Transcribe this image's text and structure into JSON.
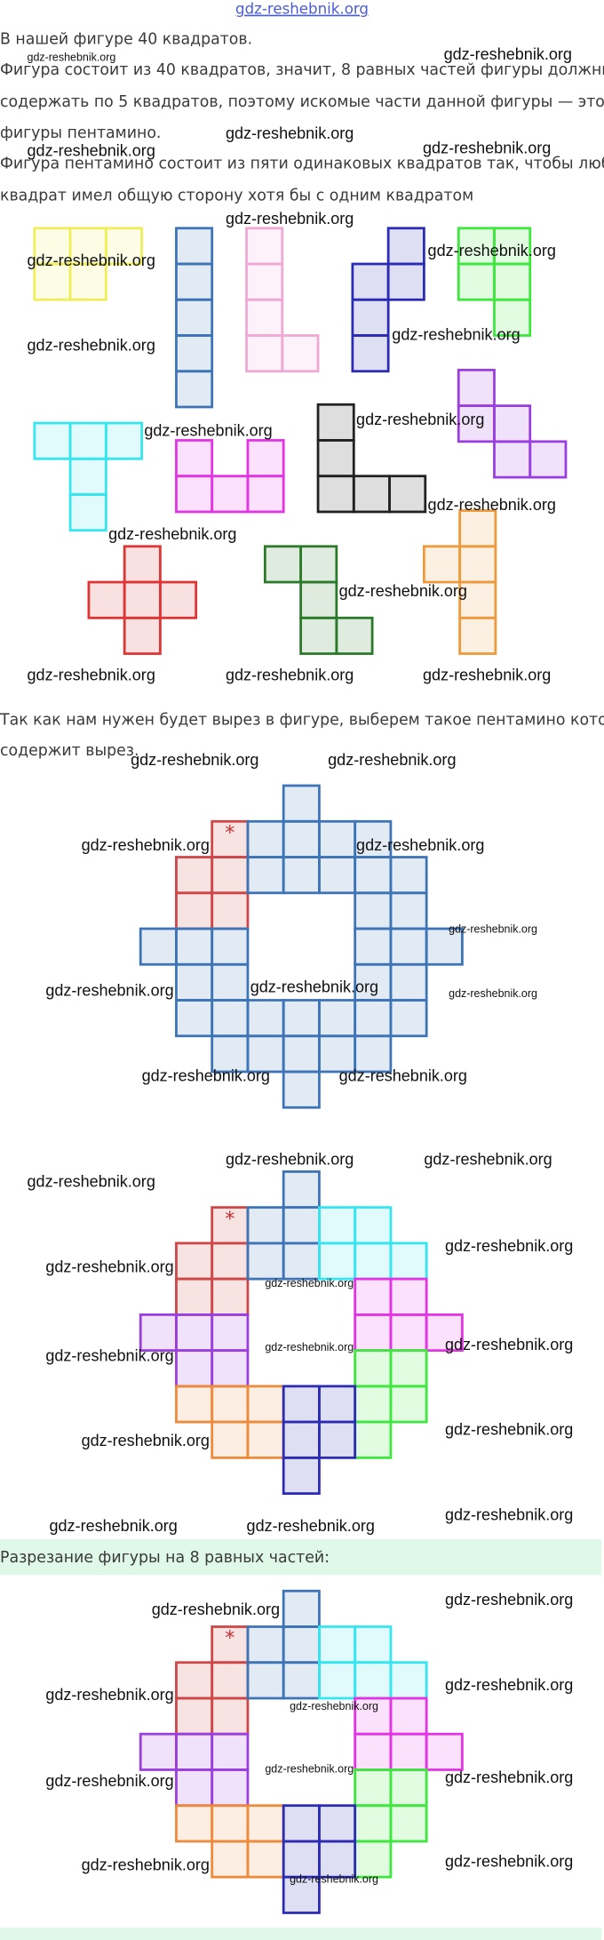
{
  "header": {
    "link": "gdz-reshebnik.org"
  },
  "paragraphs": [
    "В нашей фигуре 40 квадратов.",
    "Фигура состоит из 40 квадратов, значит, 8 равных частей фигуры должны",
    "содержать по 5 квадратов, поэтому искомые части данной фигуры — это",
    "фигуры пентамино.",
    "Фигура пентамино состоит из пяти одинаковых квадратов так, чтобы любой",
    "квадрат имел общую сторону хотя бы с одним квадратом",
    "Так как нам нужен будет вырез в фигуре, выберем такое пентамино которое",
    "содержит вырез."
  ],
  "section_title": "Разрезание фигуры на 8 равных частей:",
  "cut_mark": "*",
  "watermark": "gdz-reshebnik.org"
}
